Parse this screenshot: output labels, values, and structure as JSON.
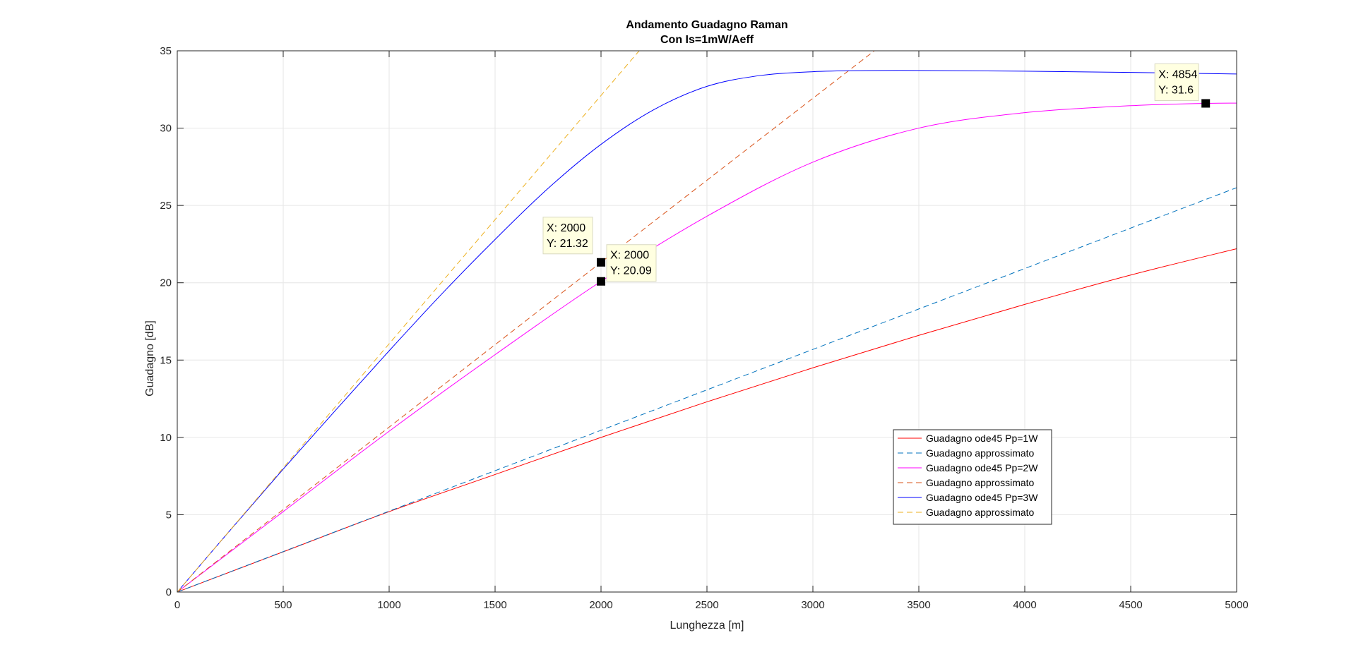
{
  "chart_data": {
    "type": "line",
    "title": "Andamento Guadagno Raman",
    "subtitle": "Con Is=1mW/Aeff",
    "xlabel": "Lunghezza [m]",
    "ylabel": "Guadagno [dB]",
    "xlim": [
      0,
      5000
    ],
    "ylim": [
      0,
      35
    ],
    "xticks": [
      0,
      500,
      1000,
      1500,
      2000,
      2500,
      3000,
      3500,
      4000,
      4500,
      5000
    ],
    "yticks": [
      0,
      5,
      10,
      15,
      20,
      25,
      30,
      35
    ],
    "xtick_labels": [
      "0",
      "500",
      "1000",
      "1500",
      "2000",
      "2500",
      "3000",
      "3500",
      "4000",
      "4500",
      "5000"
    ],
    "ytick_labels": [
      "0",
      "5",
      "10",
      "15",
      "20",
      "25",
      "30",
      "35"
    ],
    "grid": true,
    "legend_position": "lower-right",
    "series": [
      {
        "name": "Guadagno ode45 Pp=1W",
        "color": "#ff0000",
        "style": "solid",
        "x": [
          0,
          500,
          1000,
          1500,
          2000,
          2500,
          3000,
          3500,
          4000,
          4500,
          5000
        ],
        "y": [
          0,
          2.6,
          5.2,
          7.6,
          10.0,
          12.3,
          14.5,
          16.6,
          18.6,
          20.5,
          22.2
        ]
      },
      {
        "name": "Guadagno approssimato",
        "color": "#0072bd",
        "style": "dashed",
        "x": [
          0,
          5000
        ],
        "y": [
          0,
          26.15
        ]
      },
      {
        "name": "Guadagno ode45 Pp=2W",
        "color": "#ff00ff",
        "style": "solid",
        "x": [
          0,
          500,
          1000,
          1500,
          2000,
          2500,
          3000,
          3500,
          4000,
          4500,
          4854,
          5000
        ],
        "y": [
          0,
          5.2,
          10.4,
          15.35,
          20.09,
          24.3,
          27.8,
          30.0,
          31.0,
          31.45,
          31.6,
          31.62
        ]
      },
      {
        "name": "Guadagno approssimato",
        "color": "#d95319",
        "style": "dashed",
        "x": [
          0,
          2000,
          3290
        ],
        "y": [
          0,
          21.32,
          35
        ]
      },
      {
        "name": "Guadagno ode45 Pp=3W",
        "color": "#0000ff",
        "style": "solid",
        "x": [
          0,
          250,
          500,
          750,
          1000,
          1250,
          1500,
          1750,
          2000,
          2250,
          2500,
          2750,
          3000,
          3250,
          3500,
          4000,
          4500,
          5000
        ],
        "y": [
          0,
          4.0,
          7.95,
          11.8,
          15.6,
          19.3,
          22.8,
          26.1,
          28.95,
          31.2,
          32.7,
          33.4,
          33.65,
          33.72,
          33.73,
          33.68,
          33.6,
          33.5
        ]
      },
      {
        "name": "Guadagno approssimato",
        "color": "#edb120",
        "style": "dashed",
        "x": [
          0,
          2180
        ],
        "y": [
          0,
          35
        ]
      }
    ],
    "datatips": [
      {
        "x": 2000,
        "y": 21.32,
        "x_label": "X: 2000",
        "y_label": "Y: 21.32"
      },
      {
        "x": 2000,
        "y": 20.09,
        "x_label": "X: 2000",
        "y_label": "Y: 20.09"
      },
      {
        "x": 4854,
        "y": 31.6,
        "x_label": "X: 4854",
        "y_label": "Y: 31.6"
      }
    ]
  }
}
